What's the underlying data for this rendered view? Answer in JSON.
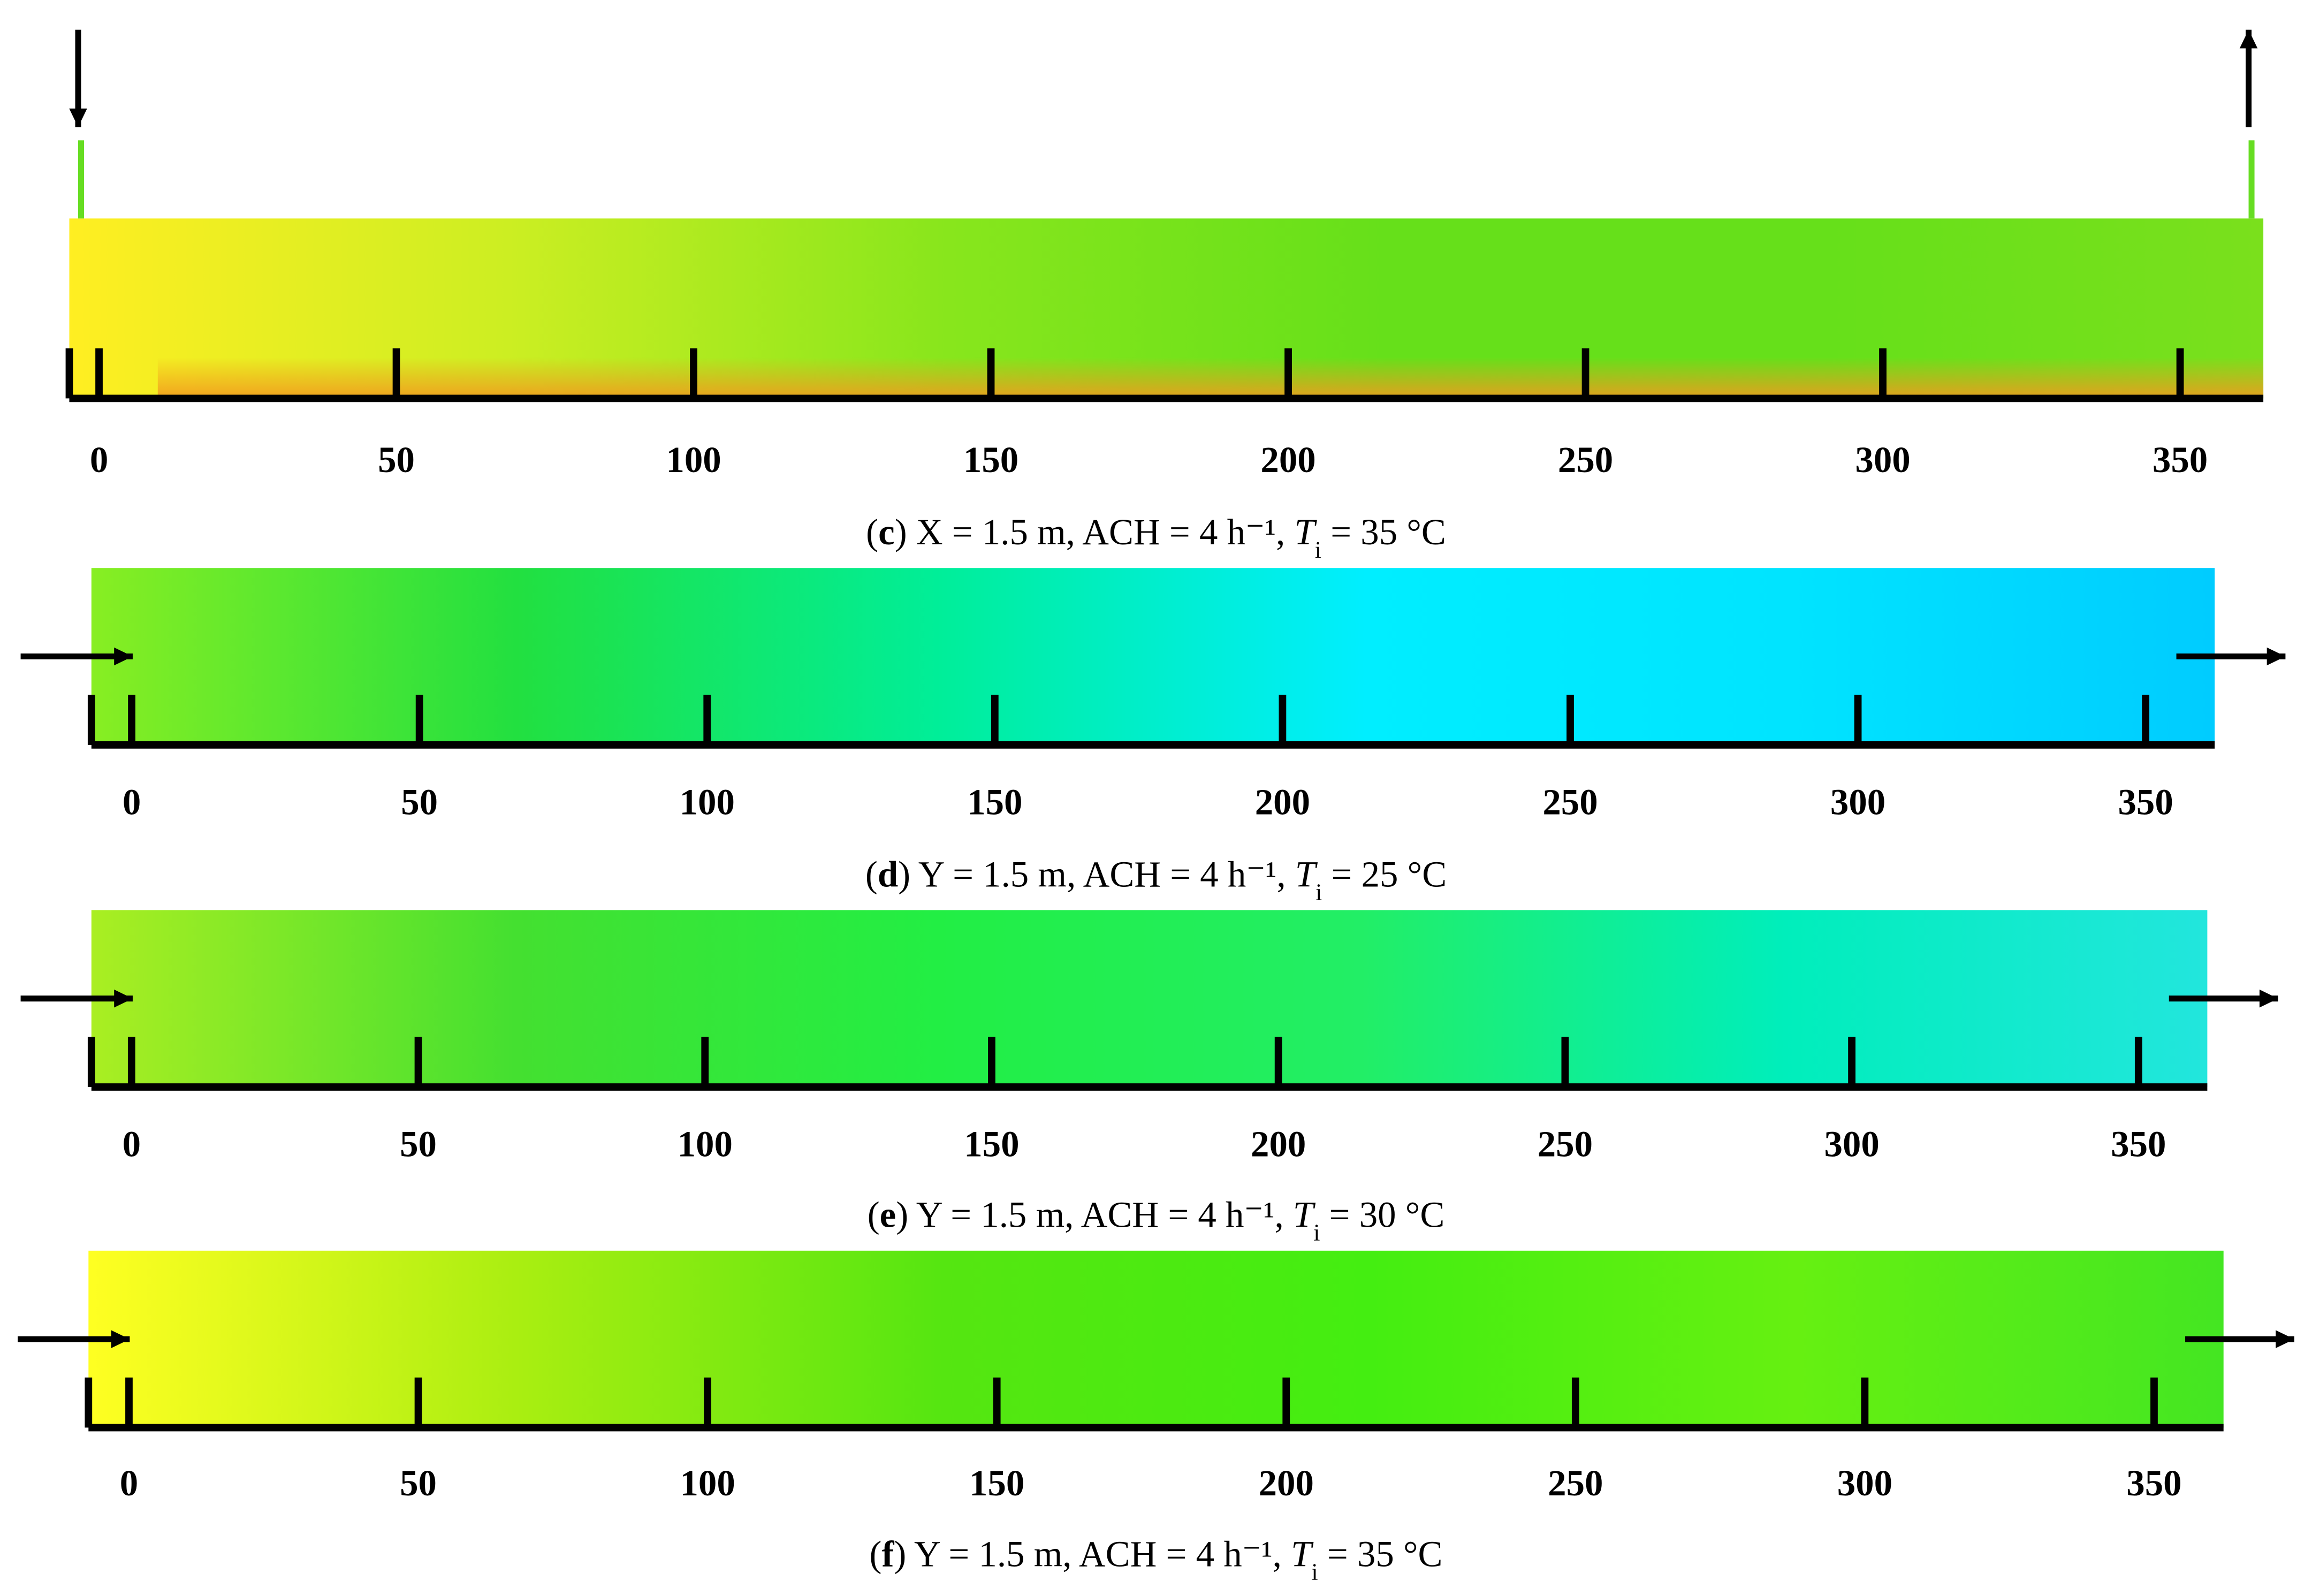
{
  "chart_data": [
    {
      "type": "contour",
      "caption": [
        "(",
        "c",
        ") X = 1.5 m, ACH = 4 h⁻¹, ",
        "T",
        "i",
        " = 35 °C"
      ],
      "xlim": [
        -5,
        364
      ],
      "xticks": [
        0,
        50,
        100,
        150,
        200,
        250,
        300,
        350
      ],
      "colors": [
        "#ffee22",
        "#ccee22",
        "#88e61c",
        "#66e01a",
        "#66e01a",
        "#7ae01c"
      ],
      "floor_color": "#f29a1e",
      "inlet": "top"
    },
    {
      "type": "contour",
      "caption": [
        "(",
        "d",
        ") Y = 1.5 m, ACH = 4 h⁻¹, ",
        "T",
        "i",
        " = 25 °C"
      ],
      "xlim": [
        -7,
        362
      ],
      "xticks": [
        0,
        50,
        100,
        150,
        200,
        250,
        300,
        350
      ],
      "colors": [
        "#88ee22",
        "#22e040",
        "#00ee99",
        "#00eeff",
        "#00e4ff",
        "#00ccff"
      ],
      "inlet": "left"
    },
    {
      "type": "contour",
      "caption": [
        "(",
        "e",
        ") Y = 1.5 m, ACH = 4 h⁻¹, ",
        "T",
        "i",
        " = 30 °C"
      ],
      "xlim": [
        -7,
        362
      ],
      "xticks": [
        0,
        50,
        100,
        150,
        200,
        250,
        300,
        350
      ],
      "colors": [
        "#aaee22",
        "#44e030",
        "#22ee44",
        "#22ee66",
        "#00eebb",
        "#22e6dd"
      ],
      "inlet": "left"
    },
    {
      "type": "contour",
      "caption": [
        "(",
        "f",
        ") Y = 1.5 m, ACH = 4 h⁻¹, ",
        "T",
        "i",
        " = 35 °C"
      ],
      "xlim": [
        -7,
        362
      ],
      "xticks": [
        0,
        50,
        100,
        150,
        200,
        250,
        300,
        350
      ],
      "colors": [
        "#ffff22",
        "#aaee11",
        "#55e611",
        "#44ee11",
        "#66f011",
        "#44e622"
      ],
      "inlet": "left"
    }
  ]
}
